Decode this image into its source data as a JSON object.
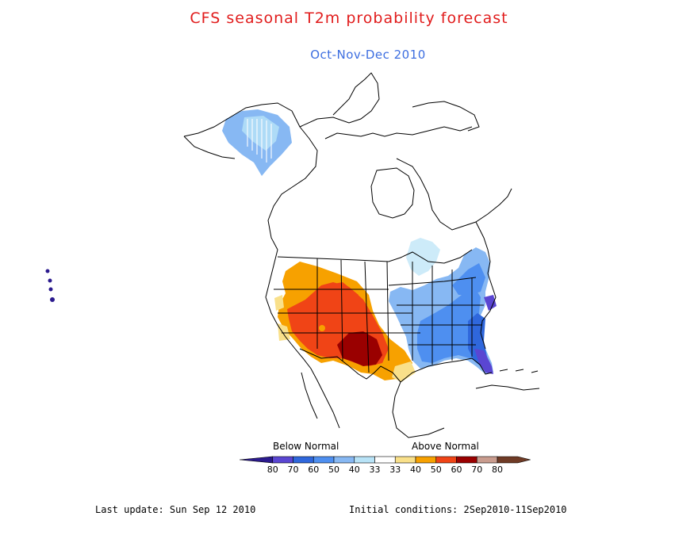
{
  "title": "CFS seasonal T2m probability forecast",
  "subtitle": "Oct-Nov-Dec 2010",
  "legend": {
    "below_label": "Below Normal",
    "above_label": "Above Normal",
    "tick_labels": [
      "80",
      "70",
      "60",
      "50",
      "40",
      "33",
      "33",
      "40",
      "50",
      "60",
      "70",
      "80"
    ],
    "colors": [
      "#2b1a8e",
      "#5a46d2",
      "#2f67dc",
      "#4e8ff0",
      "#87b8f3",
      "#b8e3f7",
      "#ffffff",
      "#f9e08a",
      "#f7a100",
      "#f04416",
      "#9a0000",
      "#c99c8e",
      "#6f3b26"
    ]
  },
  "footer": {
    "last_update": "Last update: Sun Sep 12 2010",
    "initial_conditions": "Initial conditions: 2Sep2010-11Sep2010"
  }
}
